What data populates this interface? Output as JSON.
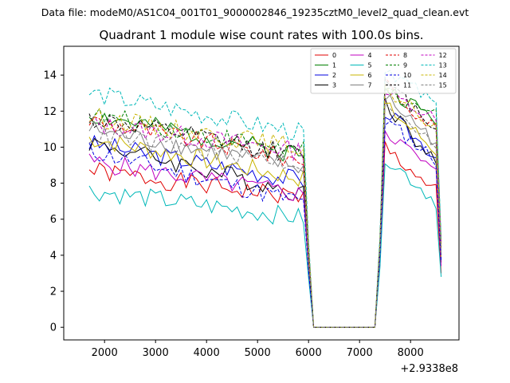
{
  "suptitle": "Data file: modeM0/AS1C04_001T01_9000002846_19235cztM0_level2_quad_clean.evt",
  "chart_data": {
    "type": "line",
    "title": "Quadrant 1 module wise count rates with 100.0s bins.",
    "xlabel": "",
    "ylabel": "",
    "x_offset_label": "+2.9338e8",
    "xlim": [
      1200,
      8950
    ],
    "ylim": [
      -0.7,
      15.6
    ],
    "xticks": [
      2000,
      3000,
      4000,
      5000,
      6000,
      7000,
      8000
    ],
    "yticks": [
      0,
      2,
      4,
      6,
      8,
      10,
      12,
      14
    ],
    "legend_loc": "upper right",
    "legend_ncol": 4,
    "x": [
      1700,
      1800,
      1900,
      2000,
      2100,
      2200,
      2300,
      2400,
      2500,
      2600,
      2700,
      2800,
      2900,
      3000,
      3100,
      3200,
      3300,
      3400,
      3500,
      3600,
      3700,
      3800,
      3900,
      4000,
      4100,
      4200,
      4300,
      4400,
      4500,
      4600,
      4700,
      4800,
      4900,
      5000,
      5100,
      5200,
      5300,
      5400,
      5500,
      5600,
      5700,
      5800,
      5900,
      6000,
      6100,
      6200,
      6300,
      6400,
      6500,
      6600,
      6700,
      6800,
      6900,
      7000,
      7100,
      7200,
      7300,
      7400,
      7500,
      7600,
      7700,
      7800,
      7900,
      8000,
      8100,
      8200,
      8300,
      8400,
      8500,
      8600
    ],
    "series": [
      {
        "name": "0",
        "color": "#e00000",
        "dash": "solid",
        "base": 8.7,
        "slope": -1.5,
        "seed": 1,
        "peak": 10.0,
        "end": 7.5
      },
      {
        "name": "1",
        "color": "#008000",
        "dash": "solid",
        "base": 11.8,
        "slope": -2.2,
        "seed": 2,
        "peak": 13.3,
        "end": 11.5
      },
      {
        "name": "2",
        "color": "#0000e0",
        "dash": "solid",
        "base": 10.2,
        "slope": -2.0,
        "seed": 3,
        "peak": 12.0,
        "end": 9.5
      },
      {
        "name": "3",
        "color": "#000000",
        "dash": "solid",
        "base": 10.3,
        "slope": -2.8,
        "seed": 4,
        "peak": 12.5,
        "end": 9.0
      },
      {
        "name": "4",
        "color": "#c000c0",
        "dash": "solid",
        "base": 9.2,
        "slope": -1.8,
        "seed": 5,
        "peak": 11.0,
        "end": 8.5
      },
      {
        "name": "5",
        "color": "#00b8b8",
        "dash": "solid",
        "base": 7.6,
        "slope": -1.5,
        "seed": 6,
        "peak": 9.5,
        "end": 7.0
      },
      {
        "name": "6",
        "color": "#c8b400",
        "dash": "solid",
        "base": 10.5,
        "slope": -2.2,
        "seed": 7,
        "peak": 12.3,
        "end": 9.8
      },
      {
        "name": "7",
        "color": "#808080",
        "dash": "solid",
        "base": 11.0,
        "slope": -2.1,
        "seed": 8,
        "peak": 12.8,
        "end": 10.3
      },
      {
        "name": "8",
        "color": "#e00000",
        "dash": "dashed",
        "base": 11.5,
        "slope": -2.2,
        "seed": 9,
        "peak": 13.5,
        "end": 11.0
      },
      {
        "name": "9",
        "color": "#008000",
        "dash": "dashed",
        "base": 11.8,
        "slope": -2.0,
        "seed": 10,
        "peak": 13.2,
        "end": 11.8
      },
      {
        "name": "10",
        "color": "#0000e0",
        "dash": "dashed",
        "base": 9.8,
        "slope": -2.8,
        "seed": 11,
        "peak": 11.5,
        "end": 9.3
      },
      {
        "name": "11",
        "color": "#000000",
        "dash": "dashed",
        "base": 11.6,
        "slope": -2.0,
        "seed": 12,
        "peak": 13.5,
        "end": 11.2
      },
      {
        "name": "12",
        "color": "#c000c0",
        "dash": "dashed",
        "base": 11.3,
        "slope": -1.5,
        "seed": 13,
        "peak": 13.0,
        "end": 11.5
      },
      {
        "name": "13",
        "color": "#00b8b8",
        "dash": "dashed",
        "base": 13.0,
        "slope": -2.2,
        "seed": 14,
        "peak": 14.5,
        "end": 12.3
      },
      {
        "name": "14",
        "color": "#c8b400",
        "dash": "dashed",
        "base": 11.7,
        "slope": -1.7,
        "seed": 15,
        "peak": 13.3,
        "end": 11.0
      },
      {
        "name": "15",
        "color": "#808080",
        "dash": "dashed",
        "base": 10.7,
        "slope": -1.6,
        "seed": 16,
        "peak": 12.5,
        "end": 10.3
      }
    ]
  }
}
